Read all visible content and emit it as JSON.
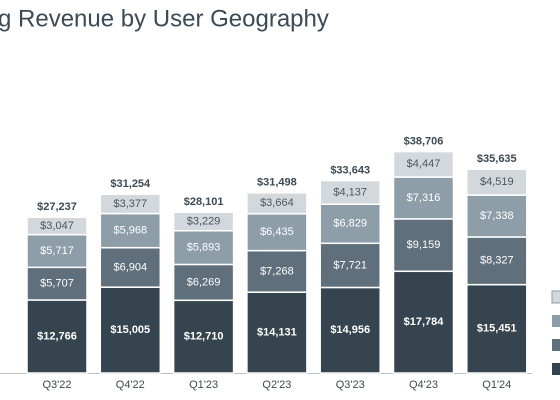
{
  "chart_data": {
    "type": "stacked_bar",
    "title": "g Revenue by User Geography",
    "categories": [
      "Q3'22",
      "Q4'22",
      "Q1'23",
      "Q2'23",
      "Q3'23",
      "Q4'23",
      "Q1'24"
    ],
    "ylim": [
      0,
      50000
    ],
    "series": [
      {
        "color": "#35444e",
        "values": [
          12766,
          15005,
          12710,
          14131,
          14956,
          17784,
          15451
        ],
        "value_labels": [
          "$12,766",
          "$15,005",
          "$12,710",
          "$14,131",
          "$14,956",
          "$17,784",
          "$15,451"
        ]
      },
      {
        "color": "#5f6f7b",
        "values": [
          5707,
          6904,
          6269,
          7268,
          7721,
          9159,
          8327
        ],
        "value_labels": [
          "$5,707",
          "$6,904",
          "$6,269",
          "$7,268",
          "$7,721",
          "$9,159",
          "$8,327"
        ]
      },
      {
        "color": "#8e9ea9",
        "values": [
          5717,
          5968,
          5893,
          6435,
          6829,
          7316,
          7338
        ],
        "value_labels": [
          "$5,717",
          "$5,968",
          "$5,893",
          "$6,435",
          "$6,829",
          "$7,316",
          "$7,338"
        ]
      },
      {
        "color": "#d3d8dc",
        "values": [
          3047,
          3377,
          3229,
          3664,
          4137,
          4447,
          4519
        ],
        "value_labels": [
          "$3,047",
          "$3,377",
          "$3,229",
          "$3,664",
          "$4,137",
          "$4,447",
          "$4,519"
        ]
      }
    ],
    "totals": [
      27237,
      31254,
      28101,
      31498,
      33643,
      38706,
      35635
    ],
    "total_labels": [
      "$27,237",
      "$31,254",
      "$28,101",
      "$31,498",
      "$33,643",
      "$38,706",
      "$35,635"
    ]
  }
}
